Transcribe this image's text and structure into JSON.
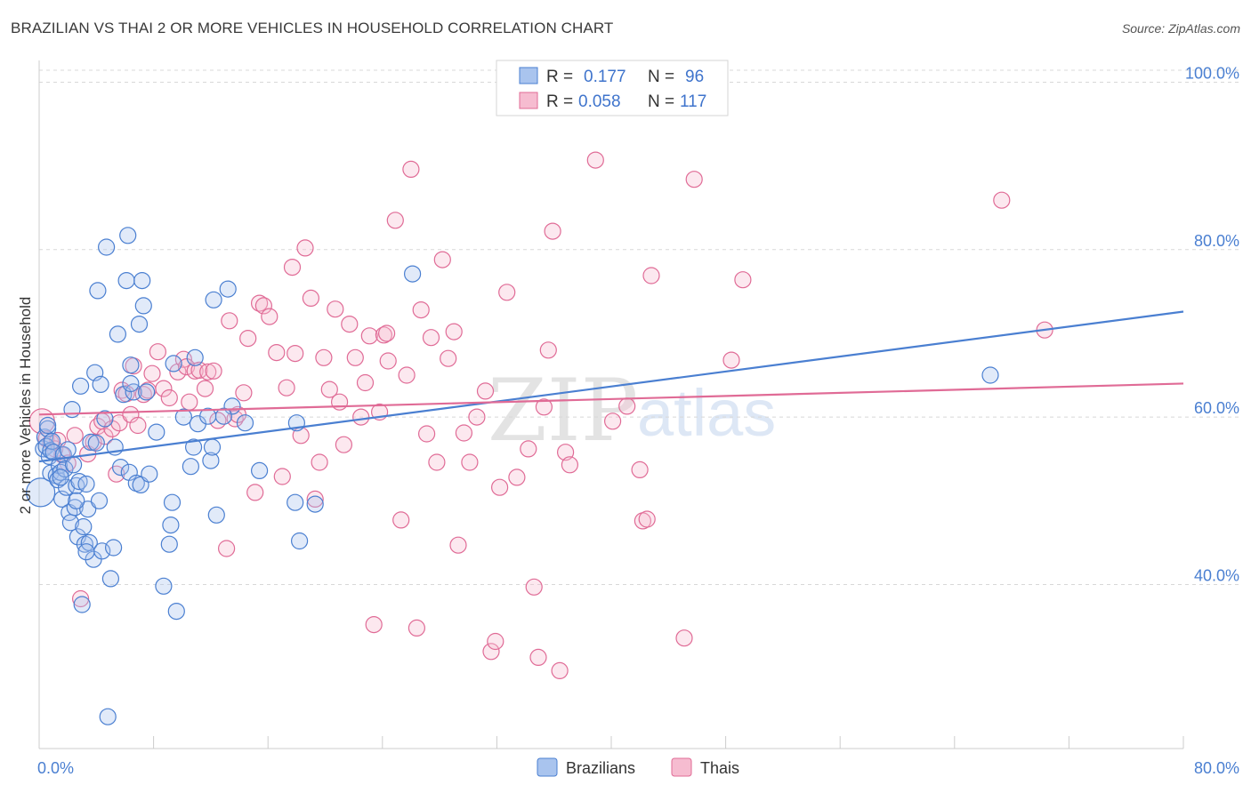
{
  "header": {
    "title": "BRAZILIAN VS THAI 2 OR MORE VEHICLES IN HOUSEHOLD CORRELATION CHART",
    "source": "Source: ZipAtlas.com"
  },
  "colors": {
    "brazilians": "#4a7fd1",
    "brazilians_fill": "#a9c4ee",
    "thais": "#e06b96",
    "thais_fill": "#f6bcd0",
    "grid": "#d8d8d8",
    "tick_label": "#4a7fd1"
  },
  "legend": {
    "rows": [
      {
        "r_label": "R =",
        "r_value": "0.177",
        "n_label": "N =",
        "n_value": "96"
      },
      {
        "r_label": "R =",
        "r_value": "0.058",
        "n_label": "N =",
        "n_value": "117"
      }
    ]
  },
  "watermark": {
    "zip": "ZIP",
    "atlas": "atlas"
  },
  "chart_data": {
    "type": "scatter",
    "title": "BRAZILIAN VS THAI 2 OR MORE VEHICLES IN HOUSEHOLD CORRELATION CHART",
    "xlabel": "",
    "ylabel": "2 or more Vehicles in Household",
    "xlim": [
      0,
      80
    ],
    "ylim": [
      20.4,
      102.6
    ],
    "x_tick_labels": [
      "0.0%",
      "80.0%"
    ],
    "y_ticks": [
      40,
      60,
      80,
      100
    ],
    "y_tick_labels": [
      "40.0%",
      "60.0%",
      "80.0%",
      "100.0%"
    ],
    "grid": true,
    "legend_position": "top-center",
    "series": [
      {
        "name": "Brazilians",
        "r": 0.177,
        "n": 96,
        "trend": {
          "x": [
            0,
            80
          ],
          "y": [
            54.7,
            72.6
          ]
        },
        "points": [
          [
            0.1,
            51.0
          ],
          [
            0.3,
            56.2
          ],
          [
            0.4,
            57.6
          ],
          [
            0.5,
            56.5
          ],
          [
            0.6,
            58.6
          ],
          [
            0.7,
            55.3
          ],
          [
            0.8,
            53.3
          ],
          [
            0.8,
            56.0
          ],
          [
            0.9,
            57.1
          ],
          [
            1.0,
            55.8
          ],
          [
            1.2,
            53.0
          ],
          [
            1.3,
            52.5
          ],
          [
            1.4,
            54.2
          ],
          [
            1.5,
            53.4
          ],
          [
            1.6,
            50.2
          ],
          [
            1.7,
            55.5
          ],
          [
            1.8,
            53.8
          ],
          [
            1.9,
            51.6
          ],
          [
            2.0,
            56.1
          ],
          [
            2.1,
            48.6
          ],
          [
            2.2,
            47.4
          ],
          [
            2.3,
            60.9
          ],
          [
            2.4,
            54.3
          ],
          [
            2.5,
            49.2
          ],
          [
            2.6,
            51.8
          ],
          [
            2.7,
            45.7
          ],
          [
            2.8,
            52.3
          ],
          [
            2.9,
            63.7
          ],
          [
            3.0,
            37.6
          ],
          [
            3.1,
            46.9
          ],
          [
            3.2,
            44.8
          ],
          [
            3.3,
            52.0
          ],
          [
            3.4,
            49.0
          ],
          [
            3.5,
            45.0
          ],
          [
            3.6,
            57.0
          ],
          [
            3.8,
            43.0
          ],
          [
            3.9,
            65.3
          ],
          [
            4.0,
            56.9
          ],
          [
            4.1,
            75.1
          ],
          [
            4.2,
            50.0
          ],
          [
            4.3,
            63.9
          ],
          [
            4.4,
            44.0
          ],
          [
            4.6,
            59.8
          ],
          [
            4.7,
            80.3
          ],
          [
            4.8,
            24.2
          ],
          [
            5.0,
            40.7
          ],
          [
            5.2,
            44.4
          ],
          [
            5.3,
            56.4
          ],
          [
            5.5,
            69.9
          ],
          [
            5.7,
            54.0
          ],
          [
            5.9,
            62.7
          ],
          [
            6.1,
            76.3
          ],
          [
            6.2,
            81.7
          ],
          [
            6.3,
            53.4
          ],
          [
            6.4,
            66.2
          ],
          [
            6.6,
            63.0
          ],
          [
            6.8,
            52.1
          ],
          [
            7.0,
            71.1
          ],
          [
            7.1,
            51.9
          ],
          [
            7.2,
            76.3
          ],
          [
            7.3,
            73.3
          ],
          [
            7.5,
            63.0
          ],
          [
            7.7,
            53.2
          ],
          [
            8.2,
            58.2
          ],
          [
            8.7,
            39.8
          ],
          [
            9.1,
            44.8
          ],
          [
            9.2,
            47.1
          ],
          [
            9.3,
            49.8
          ],
          [
            9.6,
            36.8
          ],
          [
            10.1,
            60.0
          ],
          [
            10.6,
            54.1
          ],
          [
            10.8,
            56.4
          ],
          [
            10.9,
            67.1
          ],
          [
            11.1,
            59.2
          ],
          [
            11.8,
            60.1
          ],
          [
            12.0,
            54.8
          ],
          [
            12.1,
            56.4
          ],
          [
            12.2,
            74.0
          ],
          [
            12.4,
            48.3
          ],
          [
            13.2,
            75.3
          ],
          [
            13.5,
            61.3
          ],
          [
            14.4,
            59.3
          ],
          [
            15.4,
            53.6
          ],
          [
            17.9,
            49.8
          ],
          [
            18.0,
            59.3
          ],
          [
            18.2,
            45.2
          ],
          [
            19.3,
            49.6
          ],
          [
            26.1,
            77.1
          ],
          [
            66.5,
            65.0
          ],
          [
            1.5,
            52.8
          ],
          [
            0.6,
            59.0
          ],
          [
            2.6,
            50.0
          ],
          [
            3.3,
            43.9
          ],
          [
            6.4,
            64.0
          ],
          [
            12.9,
            60.1
          ],
          [
            9.4,
            66.4
          ]
        ]
      },
      {
        "name": "Thais",
        "r": 0.058,
        "n": 117,
        "trend": {
          "x": [
            0,
            80
          ],
          "y": [
            60.3,
            64.0
          ]
        },
        "points": [
          [
            0.2,
            59.5
          ],
          [
            0.5,
            57.4
          ],
          [
            0.8,
            57.0
          ],
          [
            1.1,
            56.2
          ],
          [
            1.3,
            57.2
          ],
          [
            1.6,
            55.5
          ],
          [
            2.0,
            54.5
          ],
          [
            2.5,
            57.8
          ],
          [
            2.9,
            38.3
          ],
          [
            3.4,
            55.6
          ],
          [
            3.8,
            57.0
          ],
          [
            4.1,
            58.9
          ],
          [
            4.4,
            59.5
          ],
          [
            4.6,
            57.7
          ],
          [
            5.1,
            58.6
          ],
          [
            5.4,
            53.2
          ],
          [
            5.6,
            59.3
          ],
          [
            5.8,
            63.2
          ],
          [
            6.1,
            62.8
          ],
          [
            6.4,
            60.3
          ],
          [
            6.6,
            66.1
          ],
          [
            6.9,
            59.0
          ],
          [
            7.3,
            62.7
          ],
          [
            7.6,
            63.2
          ],
          [
            7.9,
            65.2
          ],
          [
            8.3,
            67.8
          ],
          [
            8.7,
            63.4
          ],
          [
            9.1,
            62.3
          ],
          [
            9.7,
            65.4
          ],
          [
            10.1,
            66.9
          ],
          [
            10.3,
            66.0
          ],
          [
            10.5,
            61.8
          ],
          [
            10.9,
            65.5
          ],
          [
            11.2,
            65.6
          ],
          [
            11.6,
            63.4
          ],
          [
            11.8,
            65.4
          ],
          [
            12.2,
            65.5
          ],
          [
            12.5,
            59.6
          ],
          [
            13.1,
            44.3
          ],
          [
            13.3,
            71.5
          ],
          [
            13.7,
            59.8
          ],
          [
            13.9,
            60.3
          ],
          [
            14.3,
            62.9
          ],
          [
            14.6,
            69.4
          ],
          [
            15.1,
            51.0
          ],
          [
            15.4,
            73.6
          ],
          [
            15.7,
            73.3
          ],
          [
            16.1,
            72.0
          ],
          [
            16.6,
            67.7
          ],
          [
            17.0,
            52.9
          ],
          [
            17.3,
            63.5
          ],
          [
            17.7,
            77.9
          ],
          [
            17.9,
            67.6
          ],
          [
            18.3,
            57.8
          ],
          [
            18.6,
            80.2
          ],
          [
            19.0,
            74.2
          ],
          [
            19.3,
            50.2
          ],
          [
            19.6,
            54.6
          ],
          [
            19.9,
            67.1
          ],
          [
            20.3,
            63.3
          ],
          [
            20.7,
            72.9
          ],
          [
            21.0,
            61.8
          ],
          [
            21.3,
            56.7
          ],
          [
            21.7,
            71.1
          ],
          [
            22.1,
            67.1
          ],
          [
            22.5,
            60.0
          ],
          [
            22.8,
            64.1
          ],
          [
            23.1,
            69.7
          ],
          [
            23.4,
            35.2
          ],
          [
            23.8,
            60.6
          ],
          [
            24.1,
            69.8
          ],
          [
            24.4,
            66.7
          ],
          [
            24.9,
            83.5
          ],
          [
            25.3,
            47.7
          ],
          [
            25.7,
            65.0
          ],
          [
            26.0,
            89.6
          ],
          [
            26.4,
            34.8
          ],
          [
            26.7,
            72.8
          ],
          [
            27.1,
            58.0
          ],
          [
            27.4,
            69.5
          ],
          [
            27.8,
            54.6
          ],
          [
            28.2,
            78.8
          ],
          [
            28.6,
            67.0
          ],
          [
            29.0,
            70.2
          ],
          [
            29.3,
            44.7
          ],
          [
            29.7,
            58.1
          ],
          [
            30.1,
            54.6
          ],
          [
            30.6,
            60.0
          ],
          [
            31.2,
            63.1
          ],
          [
            31.6,
            32.0
          ],
          [
            31.9,
            33.2
          ],
          [
            32.2,
            51.6
          ],
          [
            32.7,
            74.9
          ],
          [
            33.4,
            52.8
          ],
          [
            34.2,
            56.2
          ],
          [
            34.6,
            39.7
          ],
          [
            34.9,
            31.3
          ],
          [
            35.3,
            61.2
          ],
          [
            35.6,
            68.0
          ],
          [
            35.9,
            82.2
          ],
          [
            36.4,
            29.7
          ],
          [
            36.8,
            55.8
          ],
          [
            37.1,
            54.3
          ],
          [
            38.9,
            90.7
          ],
          [
            40.1,
            59.5
          ],
          [
            41.1,
            61.3
          ],
          [
            42.0,
            53.7
          ],
          [
            42.2,
            47.6
          ],
          [
            42.5,
            47.8
          ],
          [
            42.8,
            76.9
          ],
          [
            45.1,
            33.6
          ],
          [
            45.8,
            88.4
          ],
          [
            48.4,
            66.8
          ],
          [
            49.2,
            76.4
          ],
          [
            67.3,
            85.9
          ],
          [
            70.3,
            70.4
          ],
          [
            24.3,
            70.0
          ]
        ]
      }
    ]
  },
  "bottom_legend": {
    "brazilians": "Brazilians",
    "thais": "Thais"
  }
}
